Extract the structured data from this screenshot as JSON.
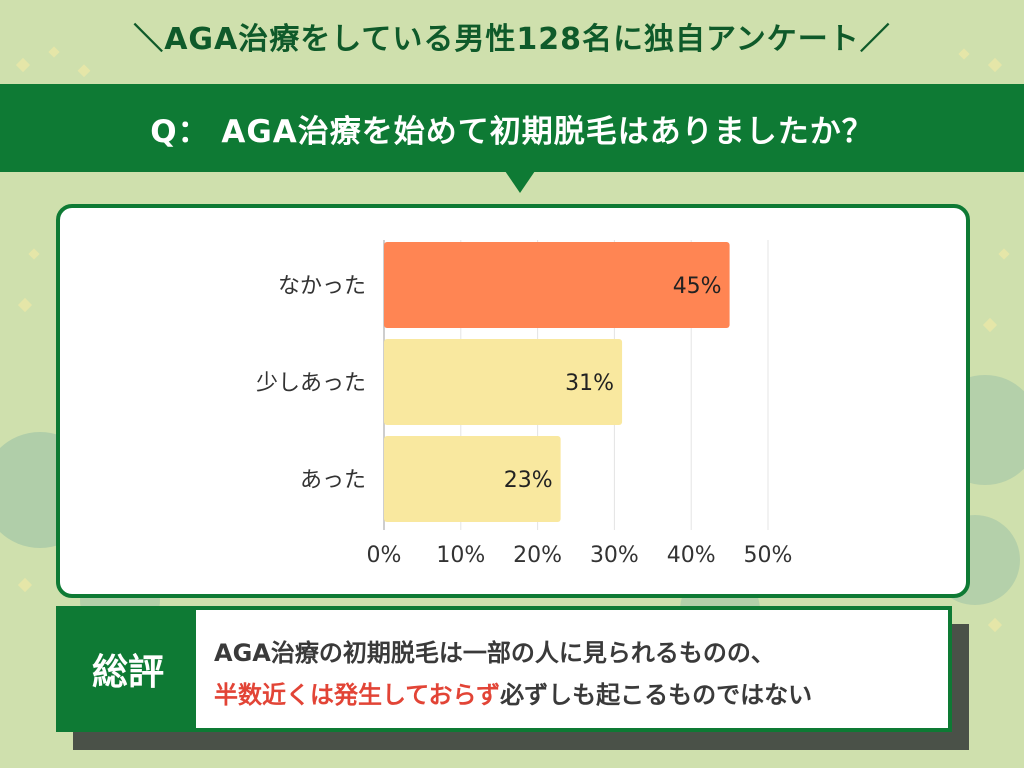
{
  "header": {
    "headline": "＼AGA治療をしている男性128名に独自アンケート／",
    "question": "Q：  AGA治療を始めて初期脱毛はありましたか？"
  },
  "chart_data": {
    "type": "bar",
    "orientation": "horizontal",
    "categories": [
      "なかった",
      "少しあった",
      "あった"
    ],
    "values": [
      45,
      31,
      23
    ],
    "value_labels": [
      "45%",
      "31%",
      "23%"
    ],
    "xlim": [
      0,
      50
    ],
    "x_ticks": [
      0,
      10,
      20,
      30,
      40,
      50
    ],
    "x_tick_labels": [
      "0%",
      "10%",
      "20%",
      "30%",
      "40%",
      "50%"
    ],
    "grid": true,
    "colors": [
      "#ff8553",
      "#f9e89f",
      "#f9e89f"
    ]
  },
  "summary": {
    "label": "総評",
    "line1": "AGA治療の初期脱毛は一部の人に見られるものの、",
    "line2_highlight": "半数近くは発生しておらず",
    "line2_rest": "必ずしも起こるものではない"
  },
  "colors": {
    "brand_green": "#0e7a34",
    "background": "#cfe0ad",
    "highlight_text": "#e24436"
  }
}
